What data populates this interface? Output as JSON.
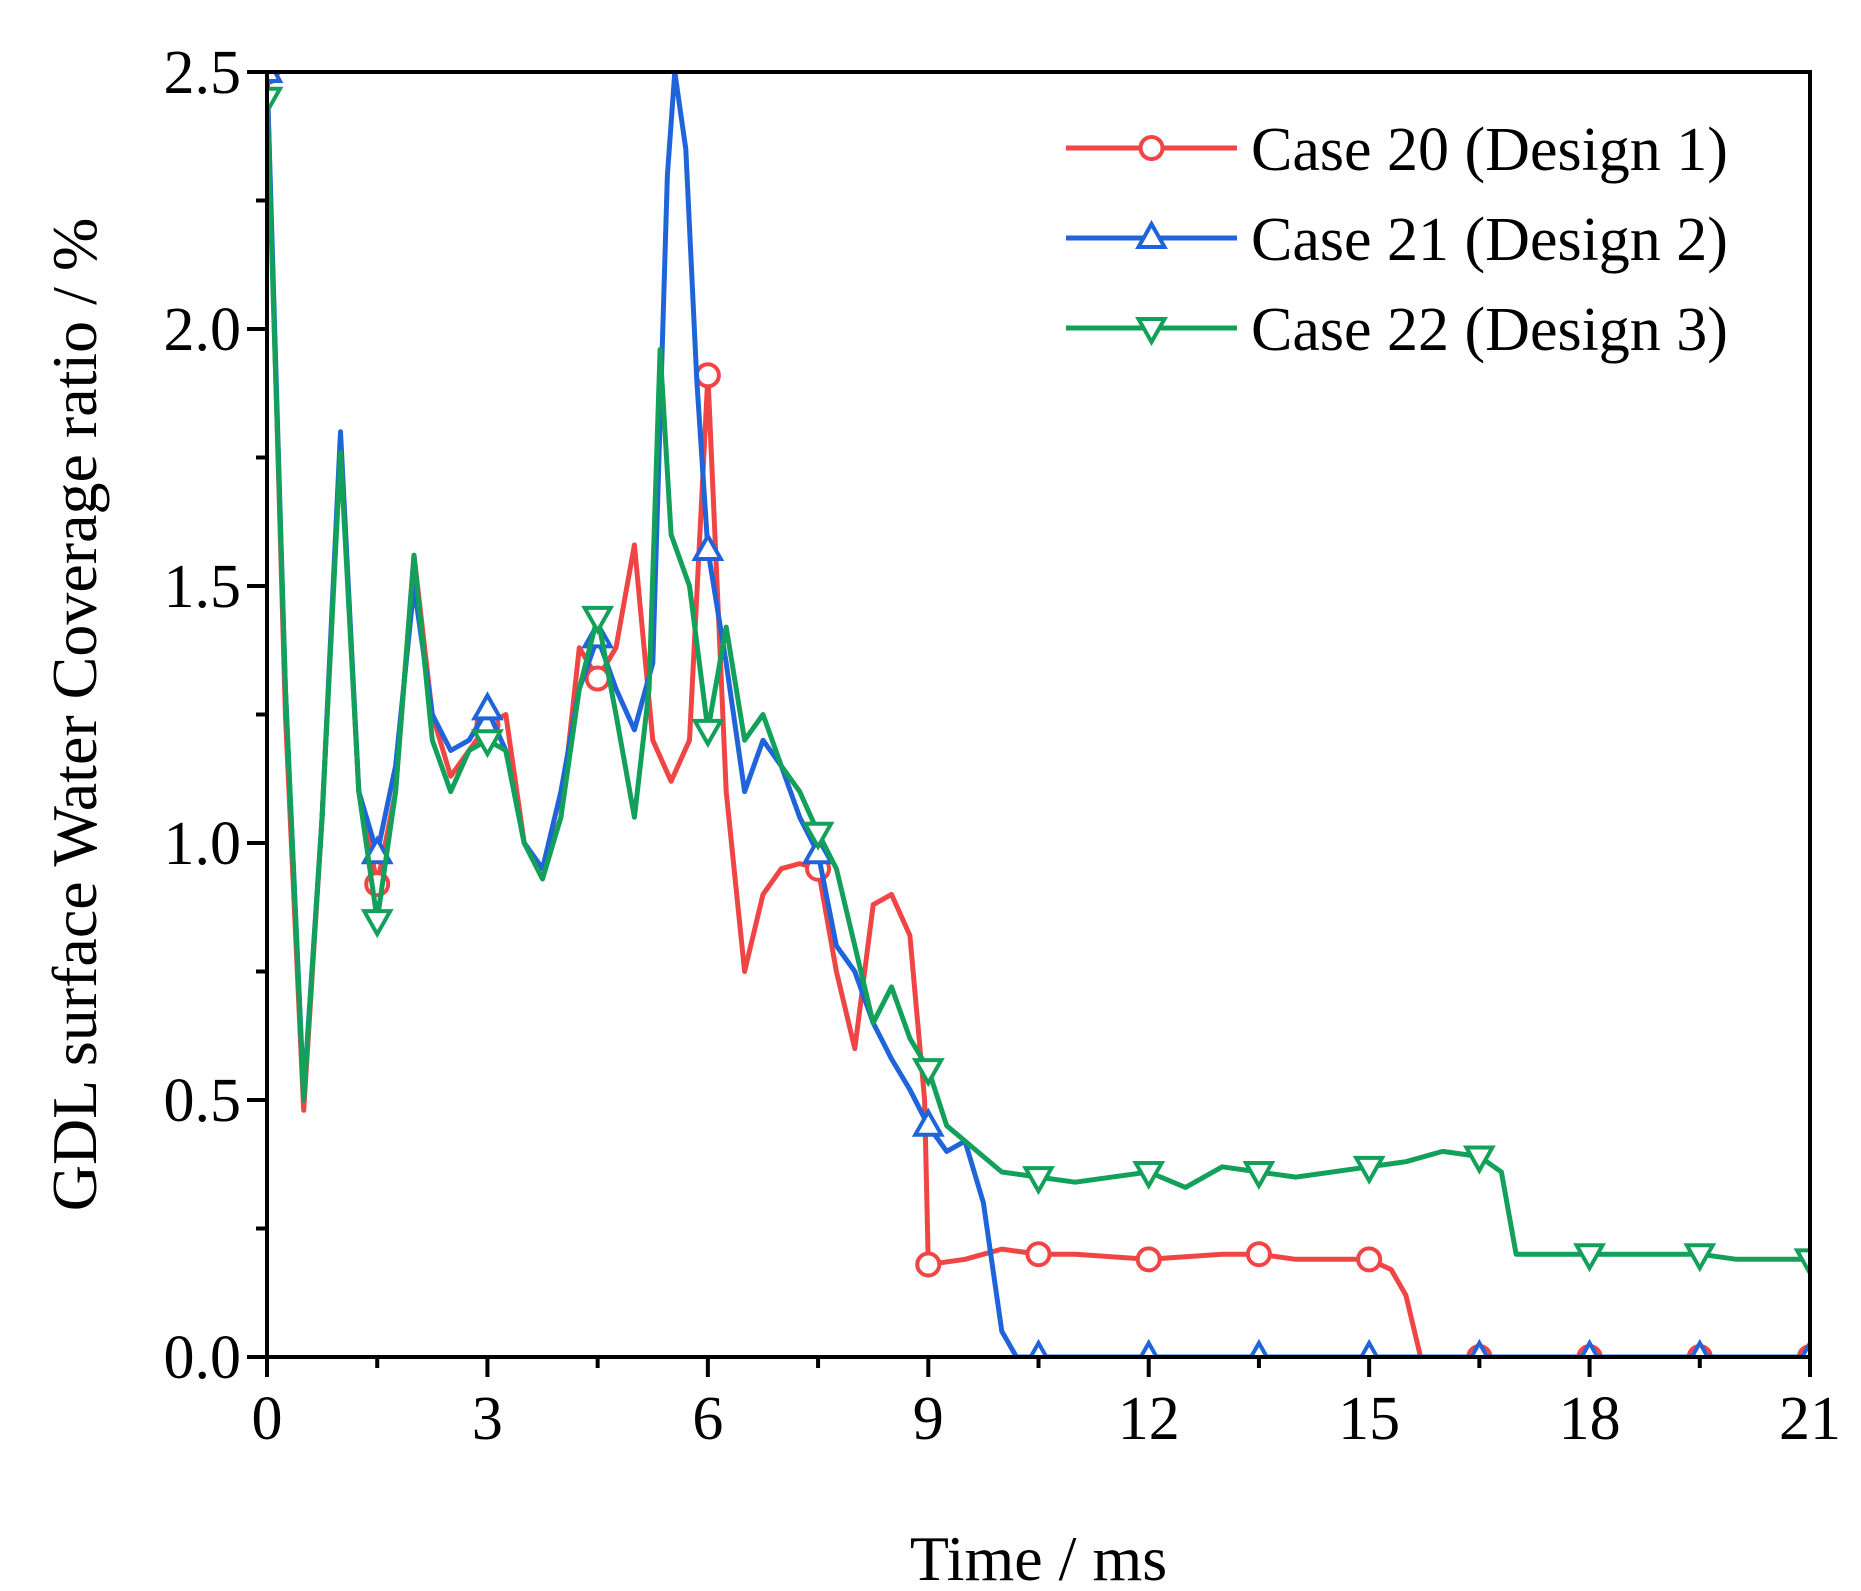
{
  "chart_data": {
    "type": "line",
    "title": "",
    "xlabel": "Time / ms",
    "ylabel": "GDL surface Water Coverage ratio / %",
    "xlim": [
      0,
      21
    ],
    "ylim": [
      0,
      2.5
    ],
    "x_ticks": [
      0,
      3,
      6,
      9,
      12,
      15,
      18,
      21
    ],
    "x_tick_labels": [
      "0",
      "3",
      "6",
      "9",
      "12",
      "15",
      "18",
      "21"
    ],
    "y_ticks": [
      0.0,
      0.5,
      1.0,
      1.5,
      2.0,
      2.5
    ],
    "y_tick_labels": [
      "0.0",
      "0.5",
      "1.0",
      "1.5",
      "2.0",
      "2.5"
    ],
    "grid": false,
    "legend_position": "top-right",
    "series": [
      {
        "name": "Case 20 (Design 1)",
        "color": "#f04545",
        "marker": "circle",
        "x": [
          0,
          0.25,
          0.5,
          0.75,
          1.0,
          1.25,
          1.5,
          1.75,
          2.0,
          2.25,
          2.5,
          2.75,
          3.0,
          3.25,
          3.5,
          3.75,
          4.0,
          4.25,
          4.5,
          4.75,
          5.0,
          5.25,
          5.5,
          5.75,
          6.0,
          6.25,
          6.5,
          6.75,
          7.0,
          7.25,
          7.5,
          7.75,
          8.0,
          8.25,
          8.5,
          8.75,
          8.95,
          9.0,
          9.5,
          10.0,
          10.5,
          11.0,
          12.0,
          13.0,
          13.5,
          14.0,
          14.5,
          15.0,
          15.3,
          15.5,
          15.7,
          16.0,
          16.5,
          18.0,
          19.5,
          21.0
        ],
        "y": [
          2.5,
          1.25,
          0.48,
          1.05,
          1.78,
          1.1,
          0.92,
          1.1,
          1.56,
          1.25,
          1.13,
          1.18,
          1.23,
          1.25,
          1.0,
          0.95,
          1.05,
          1.38,
          1.32,
          1.38,
          1.58,
          1.2,
          1.12,
          1.2,
          1.91,
          1.1,
          0.75,
          0.9,
          0.95,
          0.96,
          0.95,
          0.75,
          0.6,
          0.88,
          0.9,
          0.82,
          0.5,
          0.18,
          0.19,
          0.21,
          0.2,
          0.2,
          0.19,
          0.2,
          0.2,
          0.19,
          0.19,
          0.19,
          0.17,
          0.12,
          0.0,
          0.0,
          0.0,
          0.0,
          0.0,
          0.0
        ],
        "marker_x": [
          0,
          1.5,
          3.0,
          4.5,
          6.0,
          7.5,
          9.0,
          10.5,
          12.0,
          13.5,
          15.0,
          16.5,
          18.0,
          19.5,
          21.0
        ]
      },
      {
        "name": "Case 21 (Design 2)",
        "color": "#1f64d8",
        "marker": "triangle-up",
        "x": [
          0,
          0.25,
          0.5,
          0.75,
          1.0,
          1.25,
          1.5,
          1.75,
          2.0,
          2.25,
          2.5,
          2.75,
          3.0,
          3.25,
          3.5,
          3.75,
          4.0,
          4.25,
          4.5,
          4.75,
          5.0,
          5.25,
          5.45,
          5.55,
          5.7,
          5.85,
          6.0,
          6.25,
          6.5,
          6.75,
          7.0,
          7.25,
          7.5,
          7.75,
          8.0,
          8.25,
          8.5,
          8.75,
          9.0,
          9.25,
          9.5,
          9.75,
          10.0,
          10.2,
          10.5,
          12.0,
          13.5,
          15.0,
          16.5,
          18.0,
          19.5,
          21.0
        ],
        "y": [
          2.5,
          1.3,
          0.51,
          1.05,
          1.8,
          1.1,
          0.98,
          1.15,
          1.5,
          1.25,
          1.18,
          1.2,
          1.26,
          1.18,
          1.0,
          0.95,
          1.1,
          1.3,
          1.4,
          1.3,
          1.22,
          1.35,
          2.3,
          2.5,
          2.35,
          1.9,
          1.57,
          1.35,
          1.1,
          1.2,
          1.15,
          1.05,
          0.98,
          0.8,
          0.75,
          0.65,
          0.58,
          0.52,
          0.45,
          0.4,
          0.42,
          0.3,
          0.05,
          0.0,
          0.0,
          0.0,
          0.0,
          0.0,
          0.0,
          0.0,
          0.0,
          0.0
        ],
        "marker_x": [
          0,
          1.5,
          3.0,
          4.5,
          6.0,
          7.5,
          9.0,
          10.5,
          12.0,
          13.5,
          15.0,
          16.5,
          18.0,
          19.5,
          21.0
        ]
      },
      {
        "name": "Case 22 (Design 3)",
        "color": "#12a05a",
        "marker": "triangle-down",
        "x": [
          0,
          0.25,
          0.5,
          0.75,
          1.0,
          1.25,
          1.5,
          1.75,
          2.0,
          2.25,
          2.5,
          2.75,
          3.0,
          3.25,
          3.5,
          3.75,
          4.0,
          4.25,
          4.5,
          4.75,
          5.0,
          5.2,
          5.35,
          5.5,
          5.75,
          6.0,
          6.25,
          6.5,
          6.75,
          7.0,
          7.25,
          7.5,
          7.75,
          8.0,
          8.25,
          8.5,
          8.75,
          9.0,
          9.25,
          9.5,
          10.0,
          10.5,
          11.0,
          12.0,
          12.5,
          13.0,
          13.5,
          14.0,
          15.0,
          15.5,
          16.0,
          16.5,
          16.8,
          17.0,
          17.2,
          18.0,
          19.0,
          19.5,
          20.0,
          21.0
        ],
        "y": [
          2.45,
          1.3,
          0.5,
          1.05,
          1.76,
          1.1,
          0.85,
          1.1,
          1.56,
          1.2,
          1.1,
          1.18,
          1.2,
          1.18,
          1.0,
          0.93,
          1.05,
          1.3,
          1.44,
          1.25,
          1.05,
          1.3,
          1.96,
          1.6,
          1.5,
          1.22,
          1.42,
          1.2,
          1.25,
          1.15,
          1.1,
          1.02,
          0.95,
          0.8,
          0.65,
          0.72,
          0.62,
          0.56,
          0.45,
          0.42,
          0.36,
          0.35,
          0.34,
          0.36,
          0.33,
          0.37,
          0.36,
          0.35,
          0.37,
          0.38,
          0.4,
          0.39,
          0.36,
          0.2,
          0.2,
          0.2,
          0.2,
          0.2,
          0.19,
          0.19
        ],
        "marker_x": [
          0,
          1.5,
          3.0,
          4.5,
          6.0,
          7.5,
          9.0,
          10.5,
          12.0,
          13.5,
          15.0,
          16.5,
          18.0,
          19.5,
          21.0
        ]
      }
    ]
  }
}
